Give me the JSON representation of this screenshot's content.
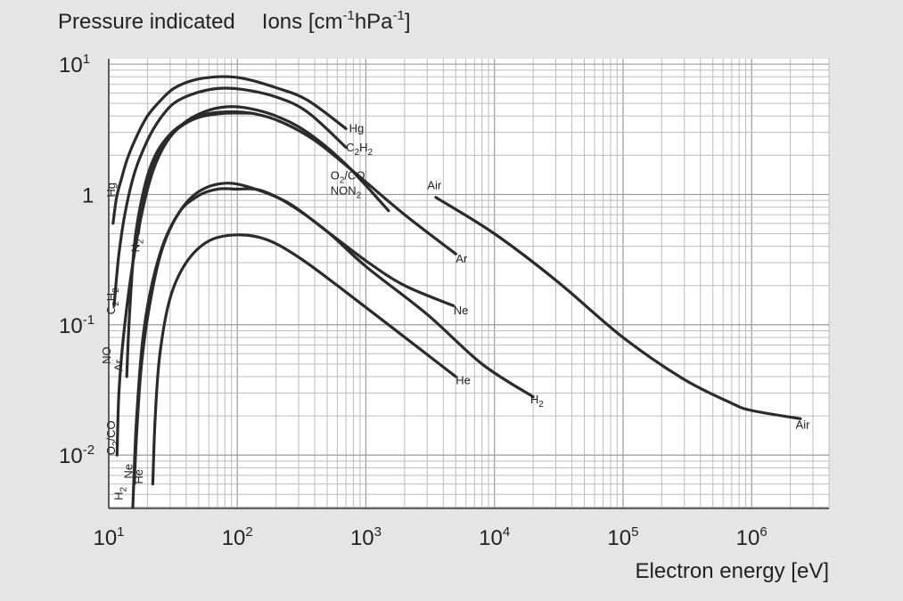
{
  "chart_data": {
    "type": "line",
    "title": "",
    "ylabel_parts": {
      "pressure": "Pressure indicated",
      "ions": "Ions [cm",
      "sup1": "-1",
      "mid": "hPa",
      "sup2": "-1",
      "close": "]"
    },
    "xlabel": "Electron energy [eV]",
    "x_scale": "log",
    "y_scale": "log",
    "xlim": [
      10,
      4000000
    ],
    "ylim": [
      0.0039,
      11
    ],
    "x_ticks": [
      {
        "base": "10",
        "exp": "1"
      },
      {
        "base": "10",
        "exp": "2"
      },
      {
        "base": "10",
        "exp": "3"
      },
      {
        "base": "10",
        "exp": "4"
      },
      {
        "base": "10",
        "exp": "5"
      },
      {
        "base": "10",
        "exp": "6"
      }
    ],
    "y_ticks": [
      {
        "base": "10",
        "exp": "1"
      },
      {
        "base": "1",
        "exp": ""
      },
      {
        "base": "10",
        "exp": "-1"
      },
      {
        "base": "10",
        "exp": "-2"
      }
    ],
    "x_tick_values": [
      10,
      100,
      1000,
      10000,
      100000,
      1000000
    ],
    "y_tick_values": [
      10,
      1,
      0.1,
      0.01
    ],
    "grid": true,
    "series": [
      {
        "name": "Hg",
        "x": [
          10.8,
          11.5,
          12.5,
          14,
          16.5,
          20,
          25,
          32,
          45,
          70,
          110,
          200,
          350,
          700
        ],
        "y": [
          0.6,
          0.95,
          1.3,
          1.9,
          2.8,
          4.0,
          5.2,
          6.5,
          7.5,
          8.0,
          7.8,
          6.6,
          5.3,
          3.2
        ]
      },
      {
        "name": "C2H2",
        "x": [
          11,
          12,
          13.5,
          16,
          20,
          25,
          32,
          45,
          70,
          110,
          200,
          350,
          700
        ],
        "y": [
          0.14,
          0.35,
          0.75,
          1.5,
          2.6,
          3.8,
          5.0,
          5.9,
          6.5,
          6.4,
          5.6,
          4.3,
          2.3
        ]
      },
      {
        "name": "O2/CO NON2",
        "x": [
          11.6,
          12,
          13,
          15,
          18,
          22,
          28,
          38,
          55,
          80,
          120,
          200,
          350,
          700,
          1500
        ],
        "y": [
          0.01,
          0.03,
          0.08,
          0.25,
          0.7,
          1.5,
          2.5,
          3.5,
          4.3,
          4.7,
          4.6,
          4.0,
          3.0,
          1.7,
          0.75
        ]
      },
      {
        "name": "Ar",
        "x": [
          13.8,
          14.5,
          16,
          19,
          23,
          30,
          40,
          55,
          80,
          130,
          220,
          400,
          800,
          2000,
          5000
        ],
        "y": [
          0.04,
          0.12,
          0.45,
          1.15,
          2.0,
          2.9,
          3.6,
          4.1,
          4.3,
          4.2,
          3.6,
          2.6,
          1.5,
          0.7,
          0.35
        ]
      },
      {
        "name": "N2",
        "x": [
          17,
          18,
          20,
          23,
          28,
          36,
          50,
          80,
          130
        ],
        "y": [
          0.5,
          0.75,
          1.2,
          1.85,
          2.6,
          3.3,
          3.9,
          4.2,
          4.2
        ]
      },
      {
        "name": "Air",
        "x": [
          3500,
          10000,
          30000,
          100000,
          300000,
          700000,
          1000000,
          2400000
        ],
        "y": [
          0.95,
          0.5,
          0.22,
          0.08,
          0.038,
          0.025,
          0.022,
          0.019
        ]
      },
      {
        "name": "Ne",
        "x": [
          15.8,
          16.5,
          18,
          21,
          26,
          35,
          50,
          80,
          130,
          250,
          500,
          1000,
          2000,
          4800
        ],
        "y": [
          0.006,
          0.015,
          0.05,
          0.15,
          0.38,
          0.72,
          1.05,
          1.22,
          1.12,
          0.86,
          0.52,
          0.31,
          0.2,
          0.14
        ]
      },
      {
        "name": "H2",
        "x": [
          15.4,
          16.5,
          19,
          25,
          35,
          50,
          70,
          100,
          150,
          250,
          500,
          1000,
          3000,
          8000,
          20000
        ],
        "y": [
          0.004,
          0.02,
          0.1,
          0.35,
          0.72,
          0.98,
          1.1,
          1.1,
          1.08,
          0.85,
          0.52,
          0.28,
          0.12,
          0.05,
          0.028
        ]
      },
      {
        "name": "He",
        "x": [
          22,
          23,
          25,
          30,
          40,
          60,
          100,
          170,
          300,
          600,
          1500,
          5000
        ],
        "y": [
          0.006,
          0.02,
          0.06,
          0.16,
          0.3,
          0.44,
          0.49,
          0.45,
          0.33,
          0.2,
          0.1,
          0.04
        ]
      }
    ],
    "annotations": [
      {
        "series": "Hg",
        "segments": [
          {
            "t": "Hg"
          }
        ],
        "at": [
          740,
          3.0
        ],
        "rotate": 0
      },
      {
        "series": "C2H2",
        "segments": [
          {
            "t": "C"
          },
          {
            "t": "2",
            "sub": true
          },
          {
            "t": "H"
          },
          {
            "t": "2",
            "sub": true
          }
        ],
        "at": [
          700,
          2.15
        ],
        "rotate": 0
      },
      {
        "series": "O2/CO",
        "segments": [
          {
            "t": "O"
          },
          {
            "t": "2",
            "sub": true
          },
          {
            "t": "/CO"
          }
        ],
        "at": [
          530,
          1.3
        ],
        "rotate": 0
      },
      {
        "series": "NON2",
        "segments": [
          {
            "t": "NON"
          },
          {
            "t": "2",
            "sub": true
          }
        ],
        "at": [
          530,
          1.0
        ],
        "rotate": 0
      },
      {
        "series": "Air",
        "segments": [
          {
            "t": "Air"
          }
        ],
        "at": [
          3000,
          1.1
        ],
        "rotate": 0
      },
      {
        "series": "Ar",
        "segments": [
          {
            "t": "Ar"
          }
        ],
        "at": [
          5000,
          0.3
        ],
        "rotate": 0
      },
      {
        "series": "Ne",
        "segments": [
          {
            "t": "Ne"
          }
        ],
        "at": [
          4800,
          0.12
        ],
        "rotate": 0
      },
      {
        "series": "He",
        "segments": [
          {
            "t": "He"
          }
        ],
        "at": [
          5000,
          0.035
        ],
        "rotate": 0
      },
      {
        "series": "H2",
        "segments": [
          {
            "t": "H"
          },
          {
            "t": "2",
            "sub": true
          }
        ],
        "at": [
          19000,
          0.025
        ],
        "rotate": 0
      },
      {
        "series": "Air",
        "segments": [
          {
            "t": "Air"
          }
        ],
        "at": [
          2200000,
          0.016
        ],
        "rotate": 0
      },
      {
        "series": "Hg",
        "segments": [
          {
            "t": "Hg"
          }
        ],
        "at": [
          11.2,
          0.95
        ],
        "rotate": -90
      },
      {
        "series": "C2H2",
        "segments": [
          {
            "t": "C"
          },
          {
            "t": "2",
            "sub": true
          },
          {
            "t": "H"
          },
          {
            "t": "2",
            "sub": true
          }
        ],
        "at": [
          11.2,
          0.12
        ],
        "rotate": -90
      },
      {
        "series": "NO",
        "segments": [
          {
            "t": "NO"
          }
        ],
        "at": [
          10.3,
          0.05
        ],
        "rotate": -90
      },
      {
        "series": "N2",
        "segments": [
          {
            "t": "N"
          },
          {
            "t": "2",
            "sub": true
          }
        ],
        "at": [
          17.4,
          0.36
        ],
        "rotate": -90
      },
      {
        "series": "Ar",
        "segments": [
          {
            "t": "Ar"
          }
        ],
        "at": [
          12.8,
          0.044
        ],
        "rotate": -90
      },
      {
        "series": "O2/CO",
        "segments": [
          {
            "t": "O"
          },
          {
            "t": "2",
            "sub": true
          },
          {
            "t": "/CO"
          }
        ],
        "at": [
          11.2,
          0.01
        ],
        "rotate": -90
      },
      {
        "series": "H2",
        "segments": [
          {
            "t": "H"
          },
          {
            "t": "2",
            "sub": true
          }
        ],
        "at": [
          12.8,
          0.0045
        ],
        "rotate": -90
      },
      {
        "series": "Ne",
        "segments": [
          {
            "t": "Ne"
          }
        ],
        "at": [
          15.3,
          0.0066
        ],
        "rotate": -90
      },
      {
        "series": "He",
        "segments": [
          {
            "t": "He"
          }
        ],
        "at": [
          18.3,
          0.006
        ],
        "rotate": -90
      }
    ]
  }
}
